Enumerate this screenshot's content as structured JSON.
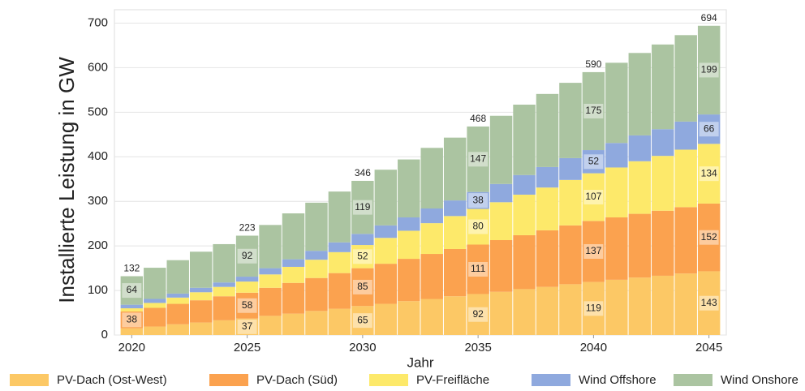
{
  "chart_data": {
    "type": "stacked-bar",
    "x_label": "Jahr",
    "y_label": "Installierte Leistung in GW",
    "x": [
      2020,
      2021,
      2022,
      2023,
      2024,
      2025,
      2026,
      2027,
      2028,
      2029,
      2030,
      2031,
      2032,
      2033,
      2034,
      2035,
      2036,
      2037,
      2038,
      2039,
      2040,
      2041,
      2042,
      2043,
      2044,
      2045
    ],
    "xlim": [
      2019.25,
      2045.75
    ],
    "xticks": [
      2020,
      2025,
      2030,
      2035,
      2040,
      2045
    ],
    "ylim": [
      0,
      730
    ],
    "yticks": [
      0,
      100,
      200,
      300,
      400,
      500,
      600,
      700
    ],
    "grid": true,
    "series": [
      {
        "name": "PV-Dach (Ost-West)",
        "color": "#fcc865",
        "values": [
          15,
          19,
          24,
          28,
          33,
          37,
          43,
          48,
          54,
          59,
          65,
          70,
          76,
          81,
          87,
          92,
          97,
          103,
          108,
          114,
          119,
          124,
          129,
          133,
          138,
          143
        ],
        "value_labels": [
          null,
          null,
          null,
          null,
          null,
          37,
          null,
          null,
          null,
          null,
          65,
          null,
          null,
          null,
          null,
          92,
          null,
          null,
          null,
          null,
          119,
          null,
          null,
          null,
          null,
          143
        ]
      },
      {
        "name": "PV-Dach (Süd)",
        "color": "#fba24f",
        "values": [
          38,
          42,
          46,
          50,
          54,
          58,
          63,
          69,
          74,
          80,
          85,
          90,
          95,
          101,
          106,
          111,
          116,
          121,
          127,
          132,
          137,
          140,
          143,
          146,
          149,
          152
        ],
        "value_labels": [
          38,
          null,
          null,
          null,
          null,
          58,
          null,
          null,
          null,
          null,
          85,
          null,
          null,
          null,
          null,
          111,
          null,
          null,
          null,
          null,
          137,
          null,
          null,
          null,
          null,
          152
        ]
      },
      {
        "name": "PV-Freifläche",
        "color": "#fde96a",
        "values": [
          7,
          11,
          14,
          18,
          21,
          25,
          30,
          36,
          41,
          47,
          52,
          58,
          63,
          69,
          74,
          80,
          85,
          91,
          96,
          102,
          107,
          112,
          118,
          123,
          129,
          134
        ],
        "value_labels": [
          null,
          null,
          null,
          null,
          null,
          null,
          null,
          null,
          null,
          null,
          52,
          null,
          null,
          null,
          null,
          80,
          null,
          null,
          null,
          null,
          107,
          null,
          null,
          null,
          null,
          134
        ]
      },
      {
        "name": "Wind Offshore",
        "color": "#8fa9de",
        "values": [
          8,
          9,
          9,
          10,
          10,
          11,
          14,
          17,
          20,
          22,
          25,
          28,
          30,
          33,
          35,
          38,
          41,
          44,
          46,
          49,
          52,
          55,
          58,
          60,
          63,
          66
        ],
        "value_labels": [
          null,
          null,
          null,
          null,
          null,
          null,
          null,
          null,
          null,
          null,
          null,
          null,
          null,
          null,
          null,
          38,
          null,
          null,
          null,
          null,
          52,
          null,
          null,
          null,
          null,
          66
        ]
      },
      {
        "name": "Wind Onshore",
        "color": "#abc4a1",
        "values": [
          64,
          70,
          75,
          81,
          86,
          92,
          97,
          103,
          108,
          114,
          119,
          125,
          130,
          136,
          141,
          147,
          153,
          158,
          164,
          169,
          175,
          180,
          185,
          190,
          194,
          199
        ],
        "value_labels": [
          64,
          null,
          null,
          null,
          null,
          92,
          null,
          null,
          null,
          null,
          119,
          null,
          null,
          null,
          null,
          147,
          null,
          null,
          null,
          null,
          175,
          null,
          null,
          null,
          null,
          199
        ]
      }
    ],
    "total_labels": [
      132,
      null,
      null,
      null,
      null,
      223,
      null,
      null,
      null,
      null,
      346,
      null,
      null,
      null,
      null,
      468,
      null,
      null,
      null,
      null,
      590,
      null,
      null,
      null,
      null,
      694
    ]
  }
}
